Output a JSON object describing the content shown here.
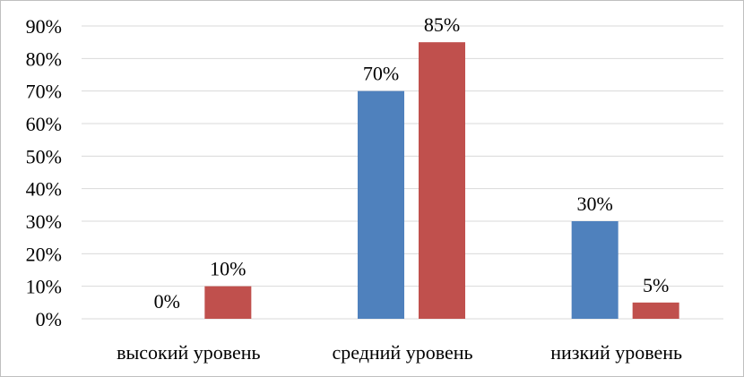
{
  "chart_data": {
    "type": "bar",
    "title": "",
    "xlabel": "",
    "ylabel": "",
    "categories": [
      "высокий  уровень",
      "средний уровень",
      "низкий уровень"
    ],
    "series": [
      {
        "values": [
          0,
          70,
          30
        ],
        "color": "#4f81bd"
      },
      {
        "values": [
          10,
          85,
          5
        ],
        "color": "#c0504d"
      }
    ],
    "data_labels": [
      [
        "0%",
        "70%",
        "30%"
      ],
      [
        "10%",
        "85%",
        "5%"
      ]
    ],
    "ylim": [
      0,
      90
    ],
    "ytick_values": [
      0,
      10,
      20,
      30,
      40,
      50,
      60,
      70,
      80,
      90
    ],
    "ytick_labels": [
      "0%",
      "10%",
      "20%",
      "30%",
      "40%",
      "50%",
      "60%",
      "70%",
      "80%",
      "90%"
    ],
    "grid": true,
    "legend": "none"
  }
}
